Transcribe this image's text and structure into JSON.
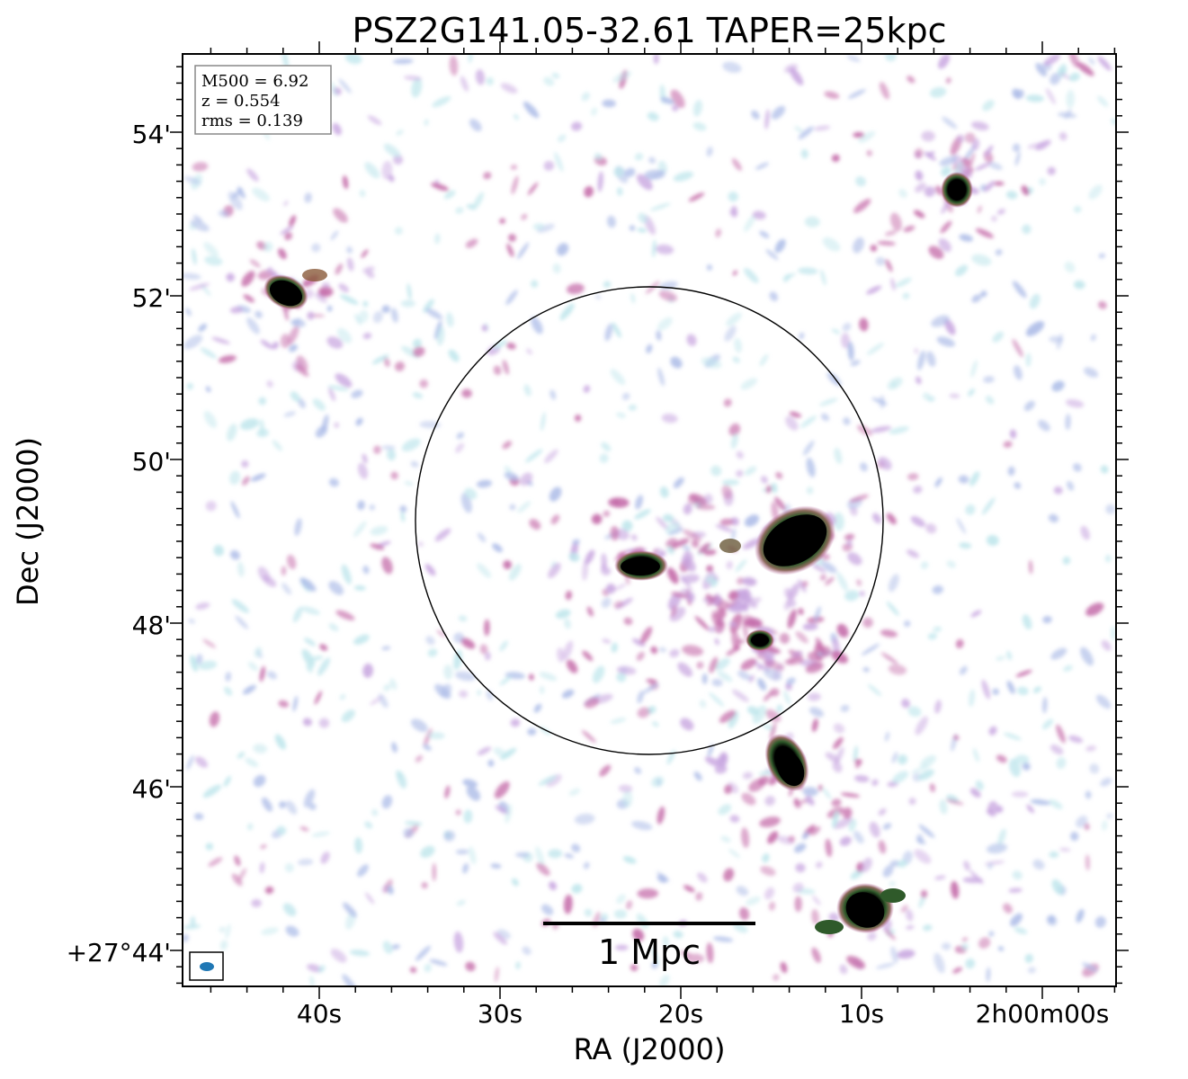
{
  "title": "PSZ2G141.05-32.61 TAPER=25kpc",
  "info_box": {
    "mass_line": "M500 = 6.92",
    "redshift_line": "z = 0.554",
    "rms_line": "rms = 0.139"
  },
  "axes": {
    "xlabel": "RA (J2000)",
    "ylabel": "Dec (J2000)",
    "x_ticks": [
      "40s",
      "30s",
      "20s",
      "10s",
      "2h00m00s"
    ],
    "y_ticks": [
      "54'",
      "52'",
      "50'",
      "48'",
      "46'",
      "+27°44'"
    ]
  },
  "scale_bar": {
    "label": "1 Mpc"
  },
  "colors": {
    "faint_cyan": "#bfe6ec",
    "faint_blue": "#aebde8",
    "lavender": "#c8a6e0",
    "magenta": "#c46aa8",
    "dark_green": "#2f5a2a",
    "core": "#000000",
    "beam": "#1f77b4"
  }
}
